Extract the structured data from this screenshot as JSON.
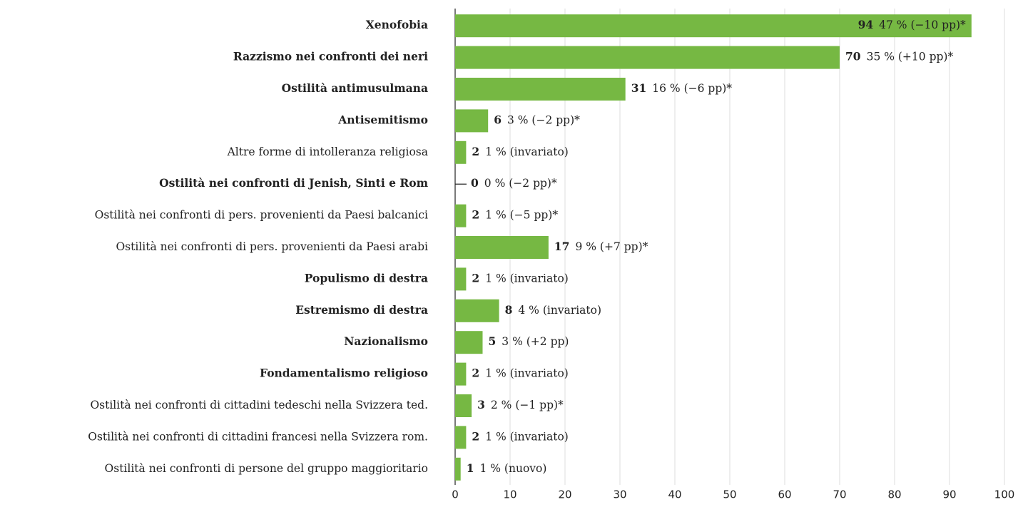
{
  "chart_data": {
    "type": "barh",
    "categories": [
      "Xenofobia",
      "Razzismo nei confronti dei neri",
      "Ostilità antimusulmana",
      "Antisemitismo",
      "Altre forme di intolleranza religiosa",
      "Ostilità nei confronti di Jenish, Sinti e Rom",
      "Ostilità nei confronti di pers. provenienti da Paesi balcanici",
      "Ostilità nei confronti di pers. provenienti da Paesi arabi",
      "Populismo di destra",
      "Estremismo di destra",
      "Nazionalismo",
      "Fondamentalismo religioso",
      "Ostilità nei confronti di cittadini tedeschi nella Svizzera ted.",
      "Ostilità nei confronti di cittadini francesi nella Svizzera rom.",
      "Ostilità nei confronti di persone del gruppo maggioritario"
    ],
    "highlight": [
      true,
      true,
      true,
      true,
      false,
      true,
      false,
      false,
      true,
      true,
      true,
      true,
      false,
      false,
      false
    ],
    "values": [
      94,
      70,
      31,
      6,
      2,
      0,
      2,
      17,
      2,
      8,
      5,
      2,
      3,
      2,
      1
    ],
    "annotations": [
      "47 % (−10 pp)*",
      "35 % (+10 pp)*",
      "16 % (−6 pp)*",
      "3 % (−2 pp)*",
      "1 % (invariato)",
      "0 % (−2 pp)*",
      "1 % (−5 pp)*",
      "9 % (+7 pp)*",
      "1 % (invariato)",
      "4 % (invariato)",
      "3 % (+2 pp)",
      "1 % (invariato)",
      "2 % (−1 pp)*",
      "1 % (invariato)",
      "1 % (nuovo)"
    ],
    "color": "#76b843",
    "xlim": [
      0,
      100
    ],
    "xticks": [
      0,
      10,
      20,
      30,
      40,
      50,
      60,
      70,
      80,
      90,
      100
    ],
    "grid": true
  }
}
